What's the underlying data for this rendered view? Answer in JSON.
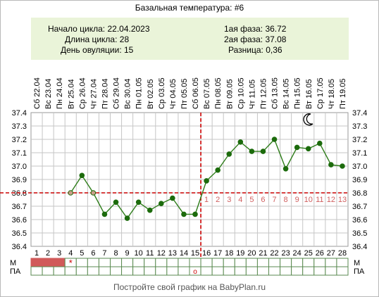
{
  "title": "Базальная температура: #6",
  "summary": {
    "cycle_start_label": "Начало цикла:",
    "cycle_start": "22.04.2023",
    "cycle_length_label": "Длина цикла:",
    "cycle_length": "28",
    "ovulation_day_label": "День овуляции:",
    "ovulation_day": "15",
    "phase1_label": "1ая фаза:",
    "phase1": "36.72",
    "phase2_label": "2ая фаза:",
    "phase2": "37.08",
    "difference_label": "Разница:",
    "difference": "0,36"
  },
  "footer": "Постройте свой график на BabyPlan.ru",
  "row_labels": {
    "m": "М",
    "pa": "ПА"
  },
  "chart_data": {
    "type": "line",
    "ylim": [
      36.4,
      37.4
    ],
    "yticks": [
      "36.4",
      "36.5",
      "36.6",
      "36.7",
      "36.8",
      "36.9",
      "37.0",
      "37.1",
      "37.2",
      "37.3",
      "37.4"
    ],
    "x": [
      1,
      2,
      3,
      4,
      5,
      6,
      7,
      8,
      9,
      10,
      11,
      12,
      13,
      14,
      15,
      16,
      17,
      18,
      19,
      20,
      21,
      22,
      23,
      24,
      25,
      26,
      27,
      28
    ],
    "dates": [
      "Сб 22.04",
      "Вс 23.04",
      "Пн 24.04",
      "Вт 25.04",
      "Ср 26.04",
      "Чт 27.04",
      "Пт 28.04",
      "Сб 29.04",
      "Вс 30.04",
      "Пн 01.05",
      "Вт 02.05",
      "Ср 03.05",
      "Чт 04.05",
      "Пт 05.05",
      "Сб 06.05",
      "Вс 07.05",
      "Пн 08.05",
      "Вт 09.05",
      "Ср 10.05",
      "Чт 11.05",
      "Пт 12.05",
      "Сб 13.05",
      "Вс 14.05",
      "Пн 15.05",
      "Вт 16.05",
      "Ср 17.05",
      "Чт 18.05",
      "Пт 19.05"
    ],
    "series": [
      {
        "x": [
          4,
          5,
          6,
          7,
          8,
          9,
          10,
          11,
          12,
          13,
          14,
          15,
          16,
          17,
          18,
          19,
          20,
          21,
          22,
          23,
          24,
          25,
          26,
          27,
          28
        ],
        "values": [
          36.8,
          36.93,
          36.8,
          36.64,
          36.73,
          36.61,
          36.73,
          36.67,
          36.72,
          36.76,
          36.64,
          36.64,
          36.89,
          36.97,
          37.09,
          37.18,
          37.11,
          37.11,
          37.2,
          36.98,
          37.14,
          37.13,
          37.17,
          37.01,
          37.0
        ],
        "hollow_x": [
          4,
          6
        ]
      }
    ],
    "coverline": 36.8,
    "ovulation_day": 15,
    "phase2_day_labels": [
      "1",
      "2",
      "3",
      "4",
      "5",
      "6",
      "7",
      "8",
      "9",
      "10",
      "11",
      "12",
      "13"
    ],
    "phase2_day_labels_start": 16,
    "menstruation_days": [
      1,
      2,
      3
    ],
    "m_star": {
      "day": 4,
      "symbol": "*"
    },
    "pa_mark": {
      "day": 15,
      "symbol": "o"
    },
    "moon_icon": "crescent-moon-icon",
    "colors": {
      "line": "#2e7d1a",
      "point": "#1c6b0c",
      "grid": "#c6c6c6",
      "coverline": "#cc0000",
      "phase2_labels": "#d06060",
      "menstruation": "#d15a5a",
      "summary_bg": "#eaf4d9"
    }
  }
}
